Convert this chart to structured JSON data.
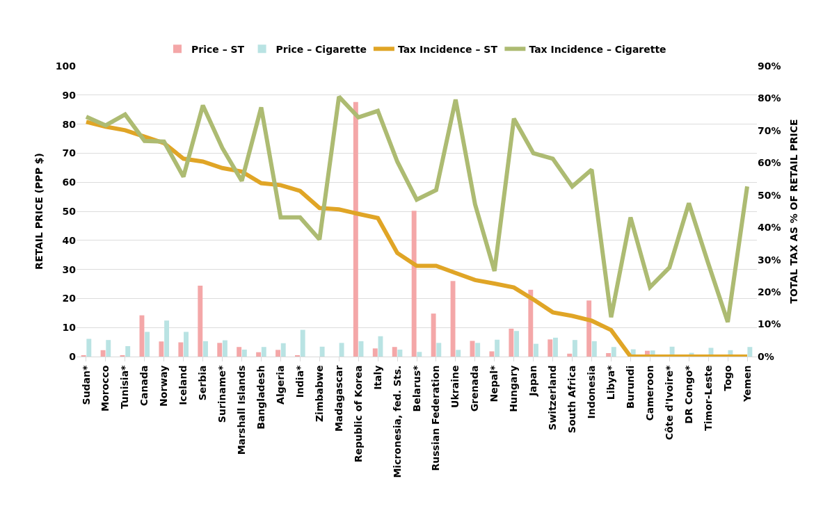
{
  "chart_data": {
    "type": "bar",
    "categories": [
      "Sudan*",
      "Morocco",
      "Tunisia*",
      "Canada",
      "Norway",
      "Iceland",
      "Serbia",
      "Suriname*",
      "Marshall Islands",
      "Bangladesh",
      "Algeria",
      "India*",
      "Zimbabwe",
      "Madagascar",
      "Republic of Korea",
      "Italy",
      "Micronesia, fed. Sts.",
      "Belarus*",
      "Russian Federation",
      "Ukraine",
      "Grenada",
      "Nepal*",
      "Hungary",
      "Japan",
      "Switzerland",
      "South Africa",
      "Indonesia",
      "Libya*",
      "Burundi",
      "Cameroon",
      "Côte d'Ivoire*",
      "DR Congo*",
      "Timor-Leste",
      "Togo",
      "Yemen"
    ],
    "ylabel": "RETAIL PRICE (PPP $)",
    "y2label": "TOTAL TAX AS % OF RETAIL PRICE",
    "series": [
      {
        "name": "Price – ST",
        "color": "#f4a7a8",
        "values": [
          0.3,
          2.2,
          0.4,
          14.2,
          5.2,
          4.9,
          24.4,
          4.7,
          3.3,
          1.5,
          2.3,
          0.4,
          null,
          null,
          87.6,
          2.8,
          3.3,
          50.2,
          14.8,
          26,
          5.4,
          1.8,
          9.6,
          23,
          5.9,
          1,
          19.3,
          1.2,
          null,
          2,
          null,
          null,
          null,
          null,
          null
        ]
      },
      {
        "name": "Price – Cigarette",
        "color": "#b9e3e3",
        "values": [
          6.1,
          5.7,
          3.6,
          8.5,
          12.4,
          8.5,
          5.3,
          5.6,
          2.4,
          3.3,
          4.6,
          9.2,
          3.4,
          4.7,
          5.3,
          7,
          2.4,
          1.6,
          4.7,
          2.3,
          4.7,
          5.8,
          8.8,
          4.4,
          6.5,
          5.7,
          5.3,
          3.3,
          2.5,
          2.1,
          3.4,
          1.3,
          3,
          2.2,
          3.3
        ]
      },
      {
        "name": "Tax Incidence – ST",
        "type": "line",
        "axis": "y2",
        "color": "#e0a526",
        "values": [
          72.7,
          71.2,
          70.1,
          68.1,
          66.1,
          61.3,
          60.4,
          58.4,
          57.3,
          53.7,
          53.1,
          51.3,
          46,
          45.6,
          44.2,
          42.9,
          32.1,
          28.1,
          28.1,
          25.9,
          23.7,
          22.6,
          21.4,
          17.7,
          13.7,
          12.6,
          11.1,
          8.2,
          0,
          0,
          0,
          0,
          0,
          0,
          0
        ]
      },
      {
        "name": "Tax Incidence – Cigarette",
        "type": "line",
        "axis": "y2",
        "color": "#adbb72",
        "values": [
          74.3,
          71.6,
          75,
          66.8,
          66.6,
          55.7,
          77.8,
          64.6,
          54.4,
          77.2,
          43.1,
          43.1,
          36.3,
          80.5,
          74.1,
          76.1,
          60.4,
          48.6,
          51.6,
          79.6,
          47.2,
          26.5,
          73.7,
          63,
          61.3,
          52.7,
          57.9,
          12.2,
          43.1,
          21.5,
          27.6,
          47.5,
          28.8,
          10.7,
          52.7
        ]
      }
    ],
    "ylim": [
      0,
      100
    ],
    "yticks": [
      0,
      10,
      20,
      30,
      40,
      50,
      60,
      70,
      80,
      90,
      100
    ],
    "y2lim": [
      0,
      90
    ],
    "y2ticks": [
      {
        "value": 0,
        "label": "0%"
      },
      {
        "value": 10,
        "label": "10%"
      },
      {
        "value": 20,
        "label": "20%"
      },
      {
        "value": 30,
        "label": "30%"
      },
      {
        "value": 40,
        "label": "40%"
      },
      {
        "value": 50,
        "label": "50%"
      },
      {
        "value": 60,
        "label": "60%"
      },
      {
        "value": 70,
        "label": "70%"
      },
      {
        "value": 80,
        "label": "80%"
      },
      {
        "value": 90,
        "label": "90%"
      }
    ],
    "grid": "y",
    "legend": "top",
    "marker": "none",
    "line_style": "solid"
  }
}
